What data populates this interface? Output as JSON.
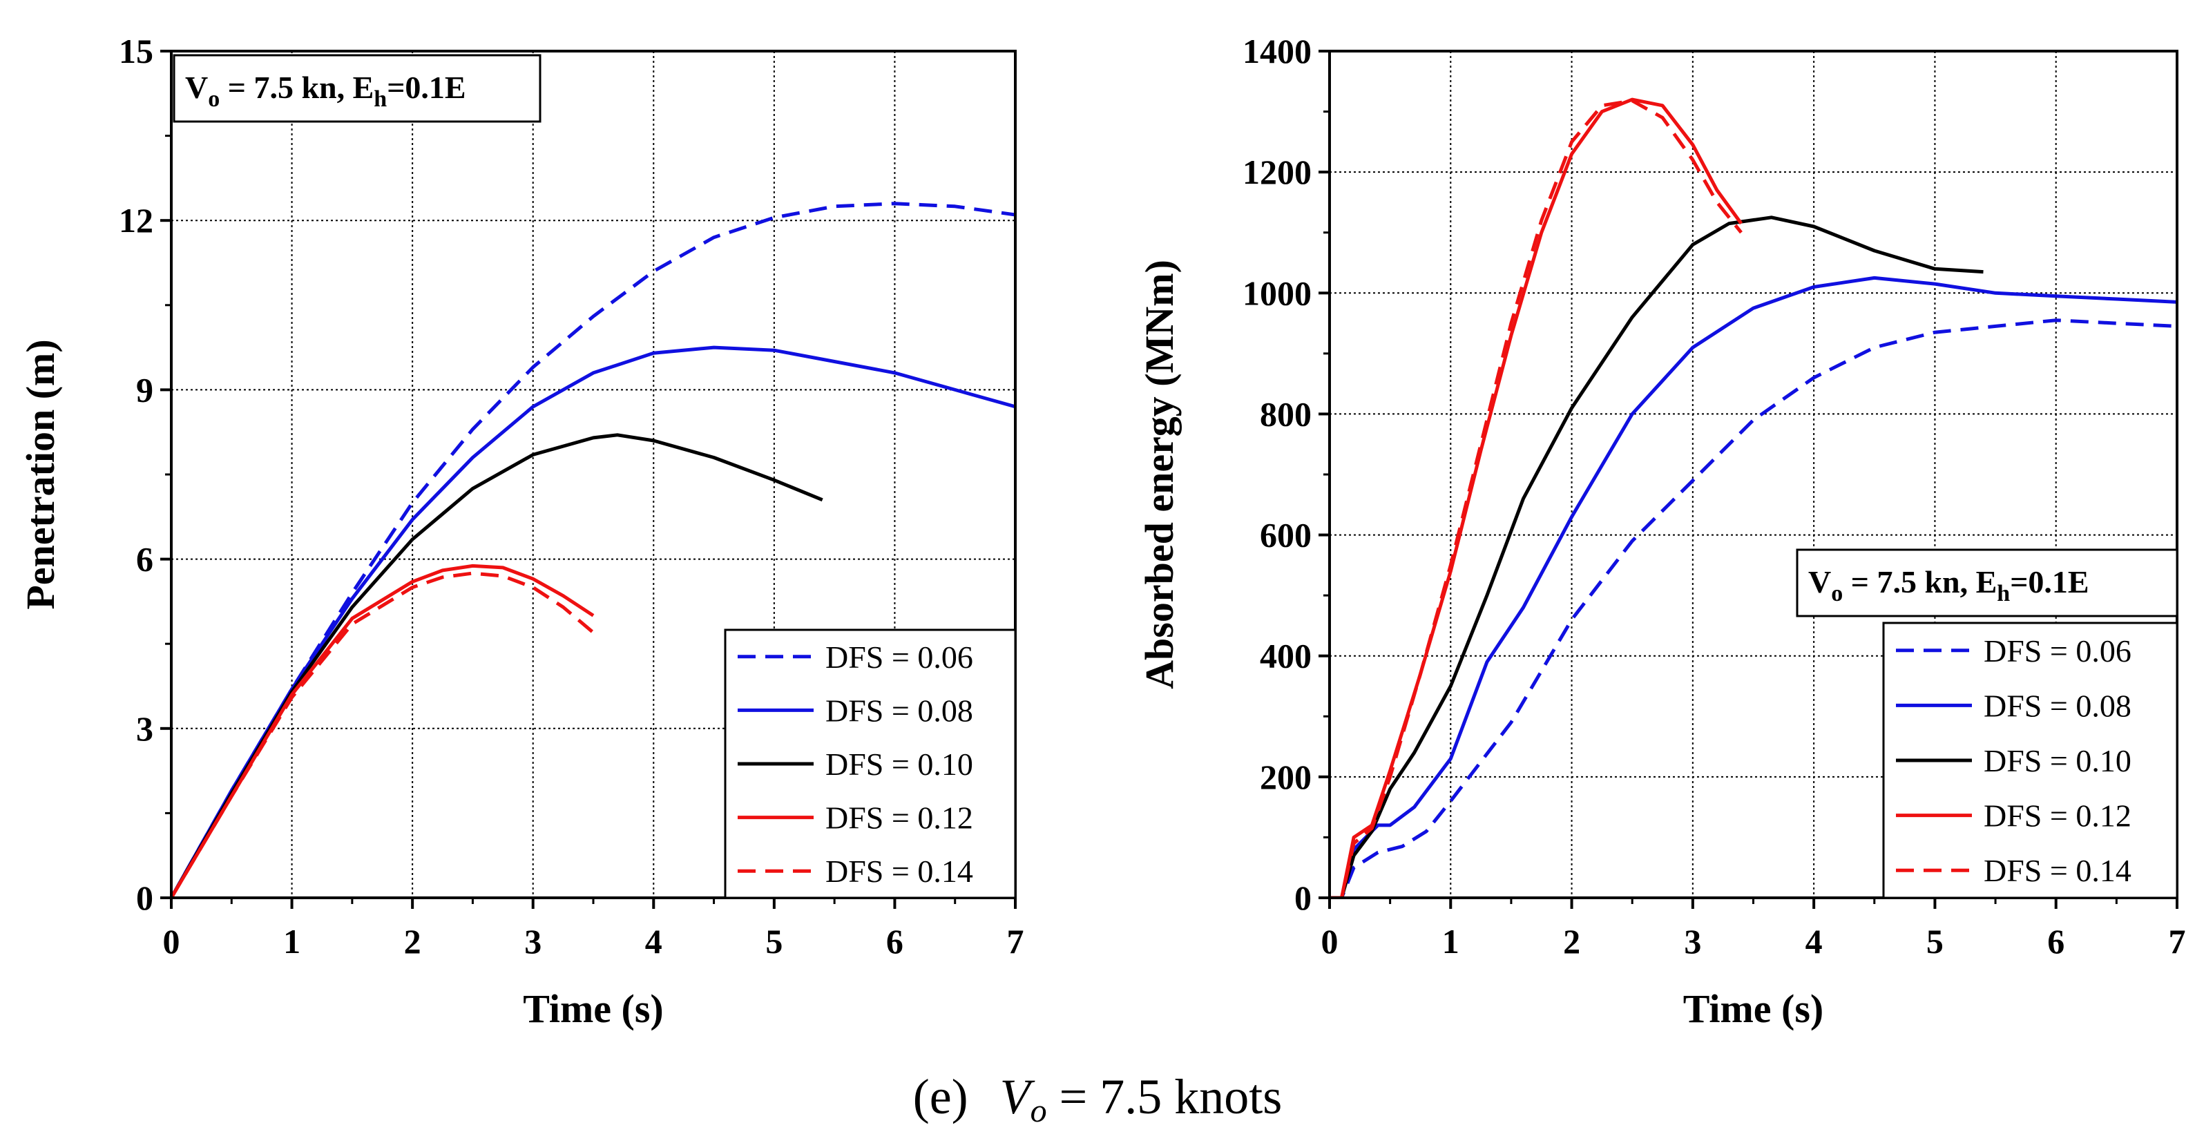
{
  "caption": {
    "label": "(e)",
    "expr": "V",
    "sub": "o",
    "rest": " = 7.5 knots"
  },
  "colors": {
    "blue": "#1010e0",
    "black": "#000000",
    "red": "#ee1111",
    "grid": "#000000"
  },
  "chart_data": [
    {
      "type": "line",
      "title": "",
      "xlabel": "Time (s)",
      "ylabel": "Penetration (m)",
      "xlim": [
        0,
        7
      ],
      "ylim": [
        0,
        15
      ],
      "xticks": [
        0,
        1,
        2,
        3,
        4,
        5,
        6,
        7
      ],
      "yticks": [
        0,
        3,
        6,
        9,
        12,
        15
      ],
      "grid": true,
      "annotation": {
        "main": "V",
        "sub1": "o",
        "mid": " = 7.5 kn, E",
        "sub2": "h",
        "tail": "=0.1E",
        "placement": "top-left"
      },
      "legend_placement": "bottom-right",
      "series": [
        {
          "name": "DFS = 0.06",
          "color": "blue",
          "dash": "dashed",
          "x": [
            0,
            0.5,
            1,
            1.5,
            2,
            2.5,
            3,
            3.5,
            4,
            4.5,
            5,
            5.5,
            6,
            6.5,
            7
          ],
          "y": [
            0,
            1.9,
            3.7,
            5.4,
            7.0,
            8.3,
            9.4,
            10.3,
            11.1,
            11.7,
            12.05,
            12.25,
            12.3,
            12.25,
            12.1
          ]
        },
        {
          "name": "DFS = 0.08",
          "color": "blue",
          "dash": "solid",
          "x": [
            0,
            0.5,
            1,
            1.5,
            2,
            2.5,
            3,
            3.5,
            4,
            4.5,
            5,
            5.5,
            6,
            6.5,
            7
          ],
          "y": [
            0,
            1.9,
            3.7,
            5.3,
            6.7,
            7.8,
            8.7,
            9.3,
            9.65,
            9.75,
            9.7,
            9.5,
            9.3,
            9.0,
            8.7
          ]
        },
        {
          "name": "DFS = 0.10",
          "color": "black",
          "dash": "solid",
          "x": [
            0,
            0.5,
            1,
            1.5,
            2,
            2.5,
            3,
            3.5,
            3.7,
            4,
            4.5,
            5,
            5.4
          ],
          "y": [
            0,
            1.85,
            3.65,
            5.15,
            6.35,
            7.25,
            7.85,
            8.15,
            8.2,
            8.1,
            7.8,
            7.4,
            7.05
          ]
        },
        {
          "name": "DFS = 0.12",
          "color": "red",
          "dash": "solid",
          "x": [
            0,
            0.5,
            1,
            1.5,
            2,
            2.25,
            2.5,
            2.75,
            3,
            3.25,
            3.5
          ],
          "y": [
            0,
            1.8,
            3.6,
            4.95,
            5.6,
            5.8,
            5.88,
            5.85,
            5.65,
            5.35,
            5.0
          ]
        },
        {
          "name": "DFS = 0.14",
          "color": "red",
          "dash": "dashed",
          "x": [
            0,
            0.5,
            1,
            1.5,
            2,
            2.25,
            2.5,
            2.75,
            3,
            3.25,
            3.5
          ],
          "y": [
            0,
            1.8,
            3.55,
            4.85,
            5.5,
            5.68,
            5.75,
            5.7,
            5.5,
            5.15,
            4.7
          ]
        }
      ]
    },
    {
      "type": "line",
      "title": "",
      "xlabel": "Time (s)",
      "ylabel": "Absorbed energy (MNm)",
      "xlim": [
        0,
        7
      ],
      "ylim": [
        0,
        1400
      ],
      "xticks": [
        0,
        1,
        2,
        3,
        4,
        5,
        6,
        7
      ],
      "yticks": [
        0,
        200,
        400,
        600,
        800,
        1000,
        1200,
        1400
      ],
      "grid": true,
      "annotation": {
        "main": "V",
        "sub1": "o",
        "mid": " = 7.5 kn, E",
        "sub2": "h",
        "tail": "=0.1E",
        "placement": "center-right"
      },
      "legend_placement": "bottom-right",
      "series": [
        {
          "name": "DFS = 0.06",
          "color": "blue",
          "dash": "dashed",
          "x": [
            0,
            0.1,
            0.2,
            0.4,
            0.6,
            0.8,
            1.0,
            1.5,
            2.0,
            2.5,
            3.0,
            3.5,
            4.0,
            4.5,
            5.0,
            5.5,
            6.0,
            6.5,
            7.0
          ],
          "y": [
            0,
            0,
            50,
            75,
            85,
            110,
            160,
            290,
            460,
            590,
            690,
            790,
            860,
            910,
            935,
            945,
            955,
            950,
            945
          ]
        },
        {
          "name": "DFS = 0.08",
          "color": "blue",
          "dash": "solid",
          "x": [
            0,
            0.1,
            0.2,
            0.3,
            0.4,
            0.5,
            0.7,
            1.0,
            1.3,
            1.6,
            2.0,
            2.5,
            3.0,
            3.5,
            4.0,
            4.5,
            5.0,
            5.5,
            6.0,
            6.5,
            7.0
          ],
          "y": [
            0,
            0,
            80,
            100,
            120,
            120,
            150,
            230,
            390,
            480,
            630,
            800,
            910,
            975,
            1010,
            1025,
            1015,
            1000,
            995,
            990,
            985
          ]
        },
        {
          "name": "DFS = 0.10",
          "color": "black",
          "dash": "solid",
          "x": [
            0,
            0.1,
            0.2,
            0.35,
            0.5,
            0.7,
            1.0,
            1.3,
            1.6,
            2.0,
            2.5,
            3.0,
            3.3,
            3.65,
            4.0,
            4.5,
            5.0,
            5.4
          ],
          "y": [
            0,
            0,
            70,
            110,
            180,
            240,
            350,
            500,
            660,
            810,
            960,
            1080,
            1115,
            1125,
            1110,
            1070,
            1040,
            1035
          ]
        },
        {
          "name": "DFS = 0.12",
          "color": "red",
          "dash": "solid",
          "x": [
            0,
            0.1,
            0.2,
            0.35,
            0.5,
            0.75,
            1.0,
            1.25,
            1.5,
            1.75,
            2.0,
            2.25,
            2.5,
            2.75,
            3.0,
            3.2,
            3.4
          ],
          "y": [
            0,
            0,
            100,
            120,
            210,
            370,
            540,
            740,
            930,
            1100,
            1230,
            1300,
            1320,
            1310,
            1245,
            1170,
            1115
          ]
        },
        {
          "name": "DFS = 0.14",
          "color": "red",
          "dash": "dashed",
          "x": [
            0,
            0.1,
            0.2,
            0.35,
            0.5,
            0.75,
            1.0,
            1.25,
            1.5,
            1.75,
            2.0,
            2.25,
            2.5,
            2.75,
            3.0,
            3.2,
            3.4
          ],
          "y": [
            0,
            0,
            90,
            115,
            200,
            370,
            550,
            750,
            950,
            1120,
            1250,
            1310,
            1318,
            1290,
            1220,
            1150,
            1100
          ]
        }
      ]
    }
  ]
}
